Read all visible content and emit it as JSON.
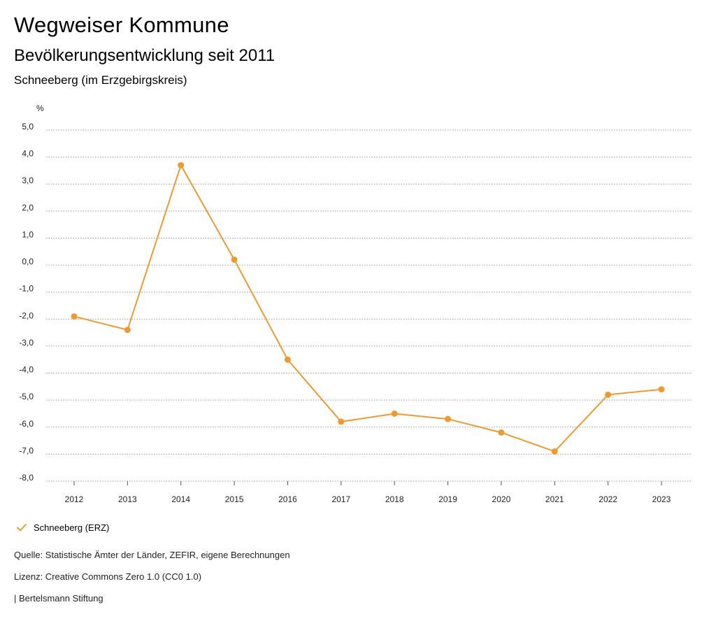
{
  "header": {
    "title": "Wegweiser Kommune",
    "subtitle": "Bevölkerungsentwicklung seit 2011",
    "region": "Schneeberg (im Erzgebirgskreis)"
  },
  "chart_data": {
    "type": "line",
    "ylabel": "%",
    "x": [
      "2012",
      "2013",
      "2014",
      "2015",
      "2016",
      "2017",
      "2018",
      "2019",
      "2020",
      "2021",
      "2022",
      "2023"
    ],
    "series": [
      {
        "name": "Schneeberg (ERZ)",
        "color": "#eb9a35",
        "values": [
          -1.9,
          -2.4,
          3.7,
          0.2,
          -3.5,
          -5.8,
          -5.5,
          -5.7,
          -6.2,
          -6.9,
          -4.8,
          -4.6
        ]
      }
    ],
    "ylim": [
      -8,
      5
    ],
    "yticks": [
      "5,0",
      "4,0",
      "3,0",
      "2,0",
      "1,0",
      "0,0",
      "-1,0",
      "-2,0",
      "-3,0",
      "-4,0",
      "-5,0",
      "-6,0",
      "-7,0",
      "-8,0"
    ],
    "grid": true,
    "legend_position": "bottom-left"
  },
  "legend": {
    "label": "Schneeberg (ERZ)",
    "icon": "check-icon"
  },
  "footer": {
    "source": "Quelle: Statistische Ämter der Länder, ZEFIR, eigene Berechnungen",
    "license": "Lizenz: Creative Commons Zero 1.0 (CC0 1.0)",
    "publisher": "| Bertelsmann Stiftung"
  }
}
